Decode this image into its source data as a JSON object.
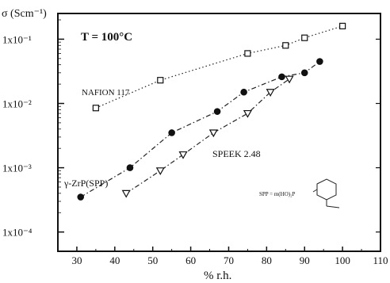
{
  "chart_data": {
    "type": "scatter",
    "title": "",
    "xlabel": "% r.h.",
    "ylabel": "σ (Scm⁻¹)",
    "xlim": [
      25,
      110
    ],
    "ylim_log10": [
      -4.3,
      -0.6
    ],
    "y_scale": "log",
    "x_ticks": [
      30,
      40,
      50,
      60,
      70,
      80,
      90,
      100,
      110
    ],
    "x_tick_labels": [
      "30",
      "40",
      "50",
      "60",
      "70",
      "80",
      "90",
      "100",
      "110"
    ],
    "y_ticks_log10": [
      -1,
      -2,
      -3,
      -4
    ],
    "y_tick_labels": [
      "1x10⁻¹",
      "1x10⁻²",
      "1x10⁻³",
      "1x10⁻⁴"
    ],
    "grid": false,
    "annotations": {
      "temperature": "T = 100°C",
      "spp_note": "SPP = m(HO)₂P"
    },
    "series": [
      {
        "name": "NAFION 117",
        "marker": "square-open",
        "line": "dotted",
        "x": [
          35,
          52,
          75,
          85,
          90,
          100
        ],
        "y": [
          0.0085,
          0.023,
          0.06,
          0.08,
          0.105,
          0.16
        ]
      },
      {
        "name": "γ-ZrP(SPP)",
        "marker": "circle-filled",
        "line": "dash-dot",
        "x": [
          31,
          44,
          55,
          67,
          74,
          84,
          90,
          94
        ],
        "y": [
          0.00035,
          0.001,
          0.0035,
          0.0075,
          0.015,
          0.026,
          0.03,
          0.045
        ]
      },
      {
        "name": "SPEEK 2.48",
        "marker": "triangle-down-open",
        "line": "dash-dot",
        "x": [
          43,
          52,
          58,
          66,
          75,
          81,
          86
        ],
        "y": [
          0.0004,
          0.0009,
          0.0016,
          0.0035,
          0.007,
          0.015,
          0.024
        ]
      }
    ]
  }
}
